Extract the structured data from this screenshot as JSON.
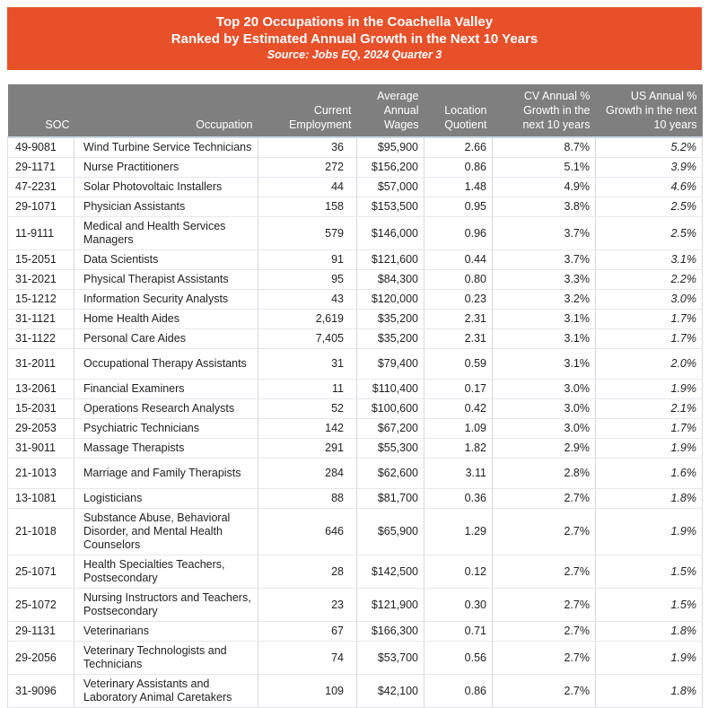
{
  "banner": {
    "title_line1": "Top 20 Occupations in the Coachella Valley",
    "title_line2": "Ranked by Estimated Annual Growth in the Next 10 Years",
    "source": "Source: Jobs EQ, 2024 Quarter 3",
    "background_color": "#E8502A",
    "text_color": "#FFFFFF"
  },
  "table": {
    "header_background": "#7F7F7F",
    "header_text_color": "#FFFFFF",
    "headers": [
      {
        "key": "soc",
        "label": "SOC"
      },
      {
        "key": "occupation",
        "label": "Occupation"
      },
      {
        "key": "current_employment",
        "label": "Current\nEmployment"
      },
      {
        "key": "average_annual_wages",
        "label": "Average\nAnnual\nWages"
      },
      {
        "key": "location_quotient",
        "label": "Location\nQuotient"
      },
      {
        "key": "cv_growth",
        "label": "CV Annual %\nGrowth in the\nnext 10 years"
      },
      {
        "key": "us_growth",
        "label": "US Annual %\nGrowth in the next\n10 years"
      }
    ],
    "rows": [
      {
        "soc": "49-9081",
        "occupation": "Wind Turbine Service Technicians",
        "current_employment": "36",
        "average_annual_wages": "$95,900",
        "location_quotient": "2.66",
        "cv_growth": "8.7%",
        "us_growth": "5.2%"
      },
      {
        "soc": "29-1171",
        "occupation": "Nurse Practitioners",
        "current_employment": "272",
        "average_annual_wages": "$156,200",
        "location_quotient": "0.86",
        "cv_growth": "5.1%",
        "us_growth": "3.9%"
      },
      {
        "soc": "47-2231",
        "occupation": "Solar Photovoltaic Installers",
        "current_employment": "44",
        "average_annual_wages": "$57,000",
        "location_quotient": "1.48",
        "cv_growth": "4.9%",
        "us_growth": "4.6%"
      },
      {
        "soc": "29-1071",
        "occupation": "Physician Assistants",
        "current_employment": "158",
        "average_annual_wages": "$153,500",
        "location_quotient": "0.95",
        "cv_growth": "3.8%",
        "us_growth": "2.5%"
      },
      {
        "soc": "11-9111",
        "occupation": "Medical and Health Services Managers",
        "current_employment": "579",
        "average_annual_wages": "$146,000",
        "location_quotient": "0.96",
        "cv_growth": "3.7%",
        "us_growth": "2.5%"
      },
      {
        "soc": "15-2051",
        "occupation": "Data Scientists",
        "current_employment": "91",
        "average_annual_wages": "$121,600",
        "location_quotient": "0.44",
        "cv_growth": "3.7%",
        "us_growth": "3.1%"
      },
      {
        "soc": "31-2021",
        "occupation": "Physical Therapist Assistants",
        "current_employment": "95",
        "average_annual_wages": "$84,300",
        "location_quotient": "0.80",
        "cv_growth": "3.3%",
        "us_growth": "2.2%"
      },
      {
        "soc": "15-1212",
        "occupation": "Information Security Analysts",
        "current_employment": "43",
        "average_annual_wages": "$120,000",
        "location_quotient": "0.23",
        "cv_growth": "3.2%",
        "us_growth": "3.0%"
      },
      {
        "soc": "31-1121",
        "occupation": "Home Health Aides",
        "current_employment": "2,619",
        "average_annual_wages": "$35,200",
        "location_quotient": "2.31",
        "cv_growth": "3.1%",
        "us_growth": "1.7%"
      },
      {
        "soc": "31-1122",
        "occupation": "Personal Care Aides",
        "current_employment": "7,405",
        "average_annual_wages": "$35,200",
        "location_quotient": "2.31",
        "cv_growth": "3.1%",
        "us_growth": "1.7%"
      },
      {
        "soc": "31-2011",
        "occupation": "Occupational Therapy Assistants",
        "current_employment": "31",
        "average_annual_wages": "$79,400",
        "location_quotient": "0.59",
        "cv_growth": "3.1%",
        "us_growth": "2.0%"
      },
      {
        "soc": "13-2061",
        "occupation": "Financial Examiners",
        "current_employment": "11",
        "average_annual_wages": "$110,400",
        "location_quotient": "0.17",
        "cv_growth": "3.0%",
        "us_growth": "1.9%"
      },
      {
        "soc": "15-2031",
        "occupation": "Operations Research Analysts",
        "current_employment": "52",
        "average_annual_wages": "$100,600",
        "location_quotient": "0.42",
        "cv_growth": "3.0%",
        "us_growth": "2.1%"
      },
      {
        "soc": "29-2053",
        "occupation": "Psychiatric Technicians",
        "current_employment": "142",
        "average_annual_wages": "$67,200",
        "location_quotient": "1.09",
        "cv_growth": "3.0%",
        "us_growth": "1.7%"
      },
      {
        "soc": "31-9011",
        "occupation": "Massage Therapists",
        "current_employment": "291",
        "average_annual_wages": "$55,300",
        "location_quotient": "1.82",
        "cv_growth": "2.9%",
        "us_growth": "1.9%"
      },
      {
        "soc": "21-1013",
        "occupation": "Marriage and Family Therapists",
        "current_employment": "284",
        "average_annual_wages": "$62,600",
        "location_quotient": "3.11",
        "cv_growth": "2.8%",
        "us_growth": "1.6%"
      },
      {
        "soc": "13-1081",
        "occupation": "Logisticians",
        "current_employment": "88",
        "average_annual_wages": "$81,700",
        "location_quotient": "0.36",
        "cv_growth": "2.7%",
        "us_growth": "1.8%"
      },
      {
        "soc": "21-1018",
        "occupation": "Substance Abuse, Behavioral Disorder, and Mental Health Counselors",
        "current_employment": "646",
        "average_annual_wages": "$65,900",
        "location_quotient": "1.29",
        "cv_growth": "2.7%",
        "us_growth": "1.9%"
      },
      {
        "soc": "25-1071",
        "occupation": "Health Specialties Teachers, Postsecondary",
        "current_employment": "28",
        "average_annual_wages": "$142,500",
        "location_quotient": "0.12",
        "cv_growth": "2.7%",
        "us_growth": "1.5%"
      },
      {
        "soc": "25-1072",
        "occupation": "Nursing Instructors and Teachers, Postsecondary",
        "current_employment": "23",
        "average_annual_wages": "$121,900",
        "location_quotient": "0.30",
        "cv_growth": "2.7%",
        "us_growth": "1.5%"
      },
      {
        "soc": "29-1131",
        "occupation": "Veterinarians",
        "current_employment": "67",
        "average_annual_wages": "$166,300",
        "location_quotient": "0.71",
        "cv_growth": "2.7%",
        "us_growth": "1.8%"
      },
      {
        "soc": "29-2056",
        "occupation": "Veterinary Technologists and Technicians",
        "current_employment": "74",
        "average_annual_wages": "$53,700",
        "location_quotient": "0.56",
        "cv_growth": "2.7%",
        "us_growth": "1.9%"
      },
      {
        "soc": "31-9096",
        "occupation": "Veterinary Assistants and Laboratory Animal Caretakers",
        "current_employment": "109",
        "average_annual_wages": "$42,100",
        "location_quotient": "0.86",
        "cv_growth": "2.7%",
        "us_growth": "1.8%"
      }
    ]
  }
}
